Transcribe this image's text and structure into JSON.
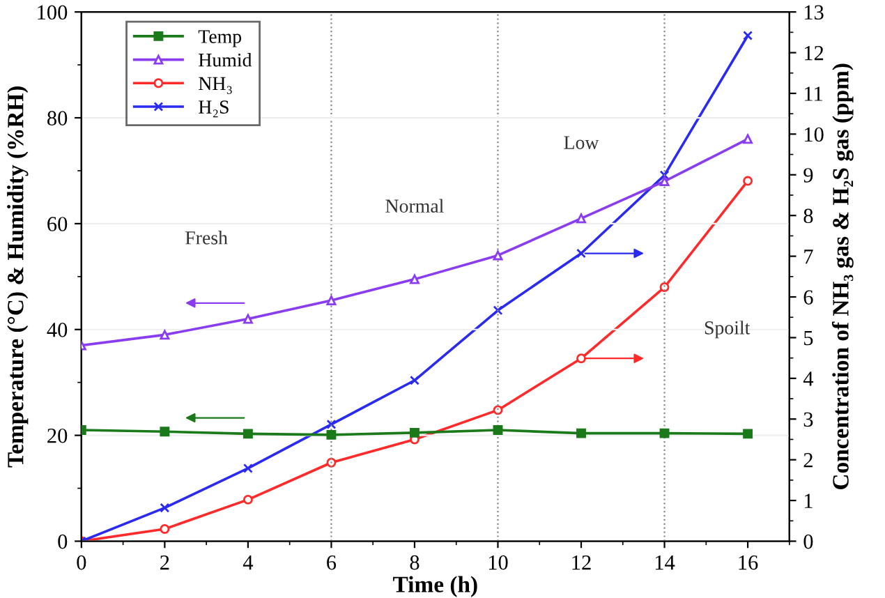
{
  "chart_data": {
    "type": "line",
    "xlabel": "Time (h)",
    "ylabel": "Temperature (°C) & Humidity (%RH)",
    "y2label": "Concentration of NH₃ gas & H₂S gas (ppm)",
    "x": [
      0,
      2,
      4,
      6,
      8,
      10,
      12,
      14,
      16
    ],
    "series": [
      {
        "name": "Temp",
        "color": "#1a7a1a",
        "marker": "square",
        "values": [
          21,
          20.7,
          20.3,
          20.1,
          20.5,
          21,
          20.4,
          20.4,
          20.3
        ]
      },
      {
        "name": "Humid",
        "color": "#8a3cf0",
        "marker": "triangle",
        "values": [
          37,
          39,
          42,
          45.5,
          49.5,
          54,
          61,
          68,
          76
        ]
      },
      {
        "name": "NH₃",
        "color": "#ff2a2a",
        "marker": "circle",
        "axis": "y2",
        "values": [
          0,
          0.3,
          1.02,
          1.93,
          2.5,
          3.22,
          4.49,
          6.24,
          8.85
        ]
      },
      {
        "name": "H₂S",
        "color": "#2a2af0",
        "marker": "cross",
        "axis": "y2",
        "values": [
          0,
          0.82,
          1.79,
          2.87,
          3.95,
          5.67,
          7.07,
          8.99,
          12.42
        ]
      }
    ],
    "xlim": [
      0,
      17
    ],
    "xticks": [
      0,
      2,
      4,
      6,
      8,
      10,
      12,
      14,
      16
    ],
    "ylim": [
      0,
      100
    ],
    "yticks": [
      0,
      20,
      40,
      60,
      80,
      100
    ],
    "y2lim": [
      0,
      13
    ],
    "y2ticks": [
      0,
      1,
      2,
      3,
      4,
      5,
      6,
      7,
      8,
      9,
      10,
      11,
      12,
      13
    ],
    "ref_lines": [
      {
        "axis": "x",
        "value": 6,
        "line_style": "dotted",
        "color": "#888888"
      },
      {
        "axis": "x",
        "value": 10,
        "line_style": "dotted",
        "color": "#888888"
      },
      {
        "axis": "x",
        "value": 14,
        "line_style": "dotted",
        "color": "#888888"
      }
    ],
    "annotations": [
      "Fresh",
      "Normal",
      "Low",
      "Spoilt"
    ],
    "grid": "y",
    "legend": "top left",
    "line_style": "solid"
  }
}
